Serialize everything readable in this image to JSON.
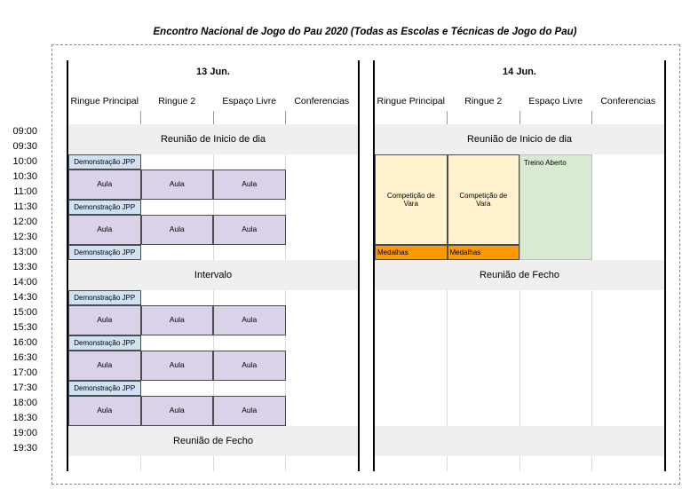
{
  "title": "Encontro Nacional de Jogo do Pau 2020 (Todas as Escolas e Técnicas de Jogo do Pau)",
  "columns": [
    "Ringue Principal",
    "Ringue 2",
    "Espaço Livre",
    "Conferencias"
  ],
  "times": [
    "09:00",
    "09:30",
    "10:00",
    "10:30",
    "11:00",
    "11:30",
    "12:00",
    "12:30",
    "13:00",
    "13:30",
    "14:00",
    "14:30",
    "15:00",
    "15:30",
    "16:00",
    "16:30",
    "17:00",
    "17:30",
    "18:00",
    "18:30",
    "19:00",
    "19:30"
  ],
  "colors": {
    "band": "#efefef",
    "demo": "#cfe2f3",
    "aula": "#d9d2e9",
    "comp": "#fff2cc",
    "medal": "#ff9900",
    "treino": "#d9ead3"
  },
  "days": [
    {
      "date": "13 Jun.",
      "events": [
        {
          "type": "band",
          "label": "Reunião de Inicio de dia",
          "row": 0,
          "span": 2
        },
        {
          "type": "demo",
          "label": "Demonstração JPP",
          "col": 0,
          "row": 2,
          "span": 1
        },
        {
          "type": "aula",
          "label": "Aula",
          "col": 0,
          "row": 3,
          "span": 2
        },
        {
          "type": "aula",
          "label": "Aula",
          "col": 1,
          "row": 3,
          "span": 2
        },
        {
          "type": "aula",
          "label": "Aula",
          "col": 2,
          "row": 3,
          "span": 2
        },
        {
          "type": "demo",
          "label": "Demonstração JPP",
          "col": 0,
          "row": 5,
          "span": 1
        },
        {
          "type": "aula",
          "label": "Aula",
          "col": 0,
          "row": 6,
          "span": 2
        },
        {
          "type": "aula",
          "label": "Aula",
          "col": 1,
          "row": 6,
          "span": 2
        },
        {
          "type": "aula",
          "label": "Aula",
          "col": 2,
          "row": 6,
          "span": 2
        },
        {
          "type": "demo",
          "label": "Demonstração JPP",
          "col": 0,
          "row": 8,
          "span": 1
        },
        {
          "type": "band",
          "label": "Intervalo",
          "row": 9,
          "span": 2
        },
        {
          "type": "demo",
          "label": "Demonstração JPP",
          "col": 0,
          "row": 11,
          "span": 1
        },
        {
          "type": "aula",
          "label": "Aula",
          "col": 0,
          "row": 12,
          "span": 2
        },
        {
          "type": "aula",
          "label": "Aula",
          "col": 1,
          "row": 12,
          "span": 2
        },
        {
          "type": "aula",
          "label": "Aula",
          "col": 2,
          "row": 12,
          "span": 2
        },
        {
          "type": "demo",
          "label": "Demonstração JPP",
          "col": 0,
          "row": 14,
          "span": 1
        },
        {
          "type": "aula",
          "label": "Aula",
          "col": 0,
          "row": 15,
          "span": 2
        },
        {
          "type": "aula",
          "label": "Aula",
          "col": 1,
          "row": 15,
          "span": 2
        },
        {
          "type": "aula",
          "label": "Aula",
          "col": 2,
          "row": 15,
          "span": 2
        },
        {
          "type": "demo",
          "label": "Demonstração JPP",
          "col": 0,
          "row": 17,
          "span": 1
        },
        {
          "type": "aula",
          "label": "Aula",
          "col": 0,
          "row": 18,
          "span": 2
        },
        {
          "type": "aula",
          "label": "Aula",
          "col": 1,
          "row": 18,
          "span": 2
        },
        {
          "type": "aula",
          "label": "Aula",
          "col": 2,
          "row": 18,
          "span": 2
        },
        {
          "type": "band",
          "label": "Reunião de Fecho",
          "row": 20,
          "span": 2
        }
      ]
    },
    {
      "date": "14 Jun.",
      "events": [
        {
          "type": "band",
          "label": "Reunião de Inicio de dia",
          "row": 0,
          "span": 2
        },
        {
          "type": "comp",
          "label": "Competição de Vara",
          "col": 0,
          "row": 2,
          "span": 6
        },
        {
          "type": "comp",
          "label": "Competição de Vara",
          "col": 1,
          "row": 2,
          "span": 6
        },
        {
          "type": "treino",
          "label": "Treino Aberto",
          "col": 2,
          "row": 2,
          "span": 7
        },
        {
          "type": "medal",
          "label": "Medalhas",
          "col": 0,
          "row": 8,
          "span": 1
        },
        {
          "type": "medal",
          "label": "Medalhas",
          "col": 1,
          "row": 8,
          "span": 1
        },
        {
          "type": "band",
          "label": "Reunião de Fecho",
          "row": 9,
          "span": 2
        },
        {
          "type": "band",
          "label": "",
          "row": 20,
          "span": 2
        }
      ]
    }
  ]
}
